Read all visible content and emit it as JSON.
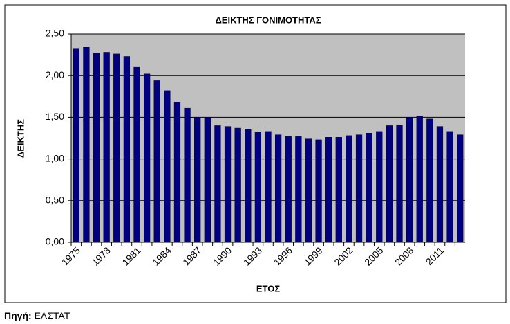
{
  "chart_data": {
    "type": "bar",
    "title": "ΔΕΙΚΤΗΣ ΓΟΝΙΜΟΤΗΤΑΣ",
    "x_label": "ΕΤΟΣ",
    "y_label": "ΔΕΙΚΤΗΣ",
    "categories": [
      "1975",
      null,
      null,
      "1978",
      null,
      null,
      "1981",
      null,
      null,
      "1984",
      null,
      null,
      "1987",
      null,
      null,
      "1990",
      null,
      null,
      "1993",
      null,
      null,
      "1996",
      null,
      null,
      "1999",
      null,
      null,
      "2002",
      null,
      null,
      "2005",
      null,
      null,
      "2008",
      null,
      null,
      "2011",
      null,
      null
    ],
    "values": [
      2.32,
      2.34,
      2.27,
      2.28,
      2.26,
      2.23,
      2.1,
      2.02,
      1.94,
      1.82,
      1.68,
      1.61,
      1.5,
      1.5,
      1.4,
      1.39,
      1.37,
      1.36,
      1.32,
      1.33,
      1.29,
      1.27,
      1.27,
      1.24,
      1.23,
      1.26,
      1.26,
      1.28,
      1.29,
      1.31,
      1.33,
      1.4,
      1.41,
      1.5,
      1.51,
      1.48,
      1.39,
      1.33,
      1.29
    ],
    "color": "#000080",
    "ylim": [
      0,
      2.5
    ],
    "yticks": [
      {
        "value": 0,
        "label": "0,00"
      },
      {
        "value": 0.5,
        "label": "0,50"
      },
      {
        "value": 1,
        "label": "1,00"
      },
      {
        "value": 1.5,
        "label": "1,50"
      },
      {
        "value": 2,
        "label": "2,00"
      },
      {
        "value": 2.5,
        "label": "2,50"
      }
    ],
    "grid": true
  },
  "source": {
    "label": "Πηγή:",
    "text": "ΕΛΣΤΑΤ"
  }
}
